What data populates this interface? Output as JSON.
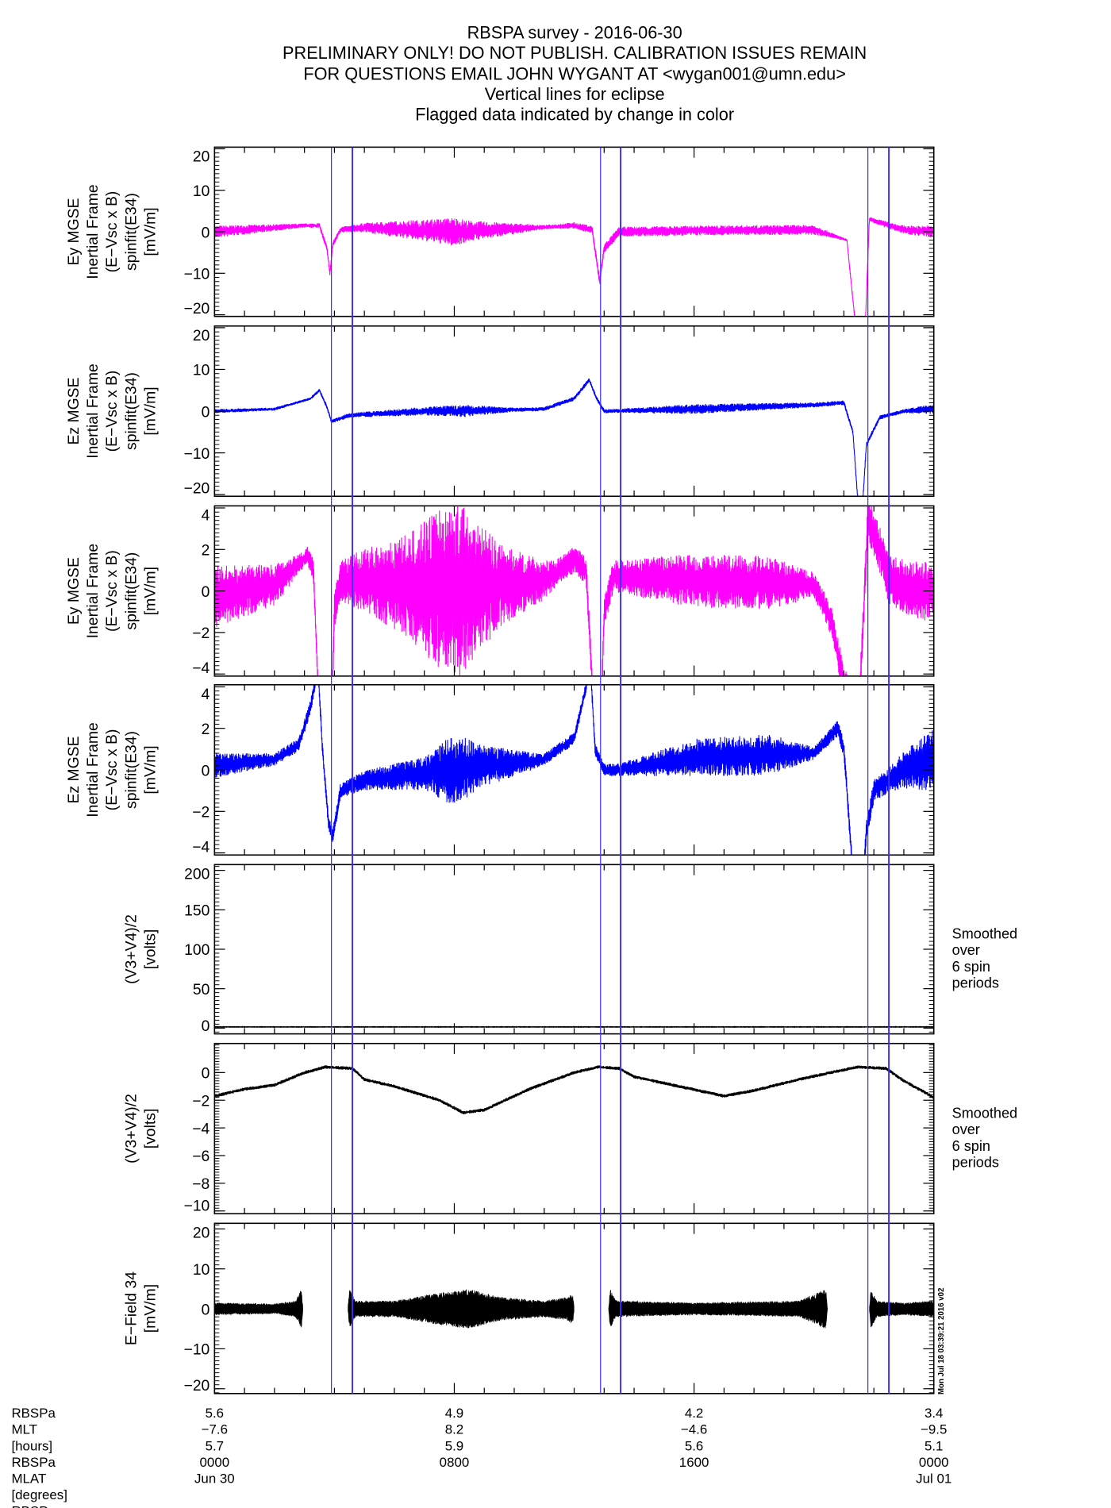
{
  "title_lines": [
    "RBSPA survey - 2016-06-30",
    "PRELIMINARY ONLY! DO NOT PUBLISH. CALIBRATION ISSUES REMAIN",
    "FOR QUESTIONS EMAIL JOHN WYGANT AT <wygan001@umn.edu>",
    "Vertical lines for eclipse",
    "Flagged data indicated by change in color"
  ],
  "timestamp_stamp": "Mon Jul 18 03:39:21 2016 v02",
  "colors": {
    "magenta": "#ff00ff",
    "blue": "#0000ff",
    "black": "#000000",
    "eclipse": "#3a2cff"
  },
  "chart_data": {
    "type": "line",
    "x_unit": "hours since 2016-06-30 0000 UT",
    "xlim": [
      0,
      24
    ],
    "eclipse_lines_hours": [
      3.9,
      4.6,
      12.88,
      13.55,
      21.8,
      22.5
    ],
    "bottom_axis": {
      "row_labels": [
        "RBSPa",
        "MLT",
        "[hours]",
        "RBSPa",
        "MLAT",
        "[degrees]",
        "RBSP"
      ],
      "ticks": [
        {
          "x": 0,
          "rows": [
            "5.6",
            "-7.6",
            "5.7",
            "0000",
            "Jun 30"
          ]
        },
        {
          "x": 8,
          "rows": [
            "4.9",
            "8.2",
            "5.9",
            "0800",
            ""
          ]
        },
        {
          "x": 16,
          "rows": [
            "4.2",
            "-4.6",
            "5.6",
            "1600",
            ""
          ]
        },
        {
          "x": 24,
          "rows": [
            "3.4",
            "-9.5",
            "5.1",
            "0000",
            "Jul 01"
          ]
        }
      ]
    },
    "panels": [
      {
        "id": "ey-20",
        "ylabel": [
          "Ey MGSE",
          "Inertial Frame",
          "(E-Vsc x B)",
          "spinfit(E34)",
          "[mV/m]"
        ],
        "ylim": [
          -20.4,
          20.4
        ],
        "yticks": [
          -20,
          -10,
          0,
          10,
          20
        ],
        "ytick_labels": [
          "-20",
          "-10",
          "0",
          "10",
          "20"
        ],
        "color": "magenta",
        "baseline": [
          [
            0,
            0
          ],
          [
            3.0,
            1.5
          ],
          [
            3.5,
            1.5
          ],
          [
            3.75,
            -4
          ],
          [
            3.85,
            -10
          ],
          [
            3.95,
            -3
          ],
          [
            4.2,
            0.5
          ],
          [
            5,
            1
          ],
          [
            8,
            0
          ],
          [
            12,
            1.5
          ],
          [
            12.6,
            0.5
          ],
          [
            12.85,
            -12
          ],
          [
            13.0,
            -4
          ],
          [
            13.5,
            0
          ],
          [
            16,
            0.3
          ],
          [
            20,
            0.5
          ],
          [
            21.1,
            -2
          ],
          [
            21.35,
            -20
          ],
          [
            21.5,
            -25
          ],
          [
            21.7,
            -25
          ],
          [
            21.85,
            3
          ],
          [
            22.3,
            2
          ],
          [
            23,
            0.5
          ],
          [
            24,
            0
          ]
        ],
        "amplitude": [
          [
            0,
            1.5
          ],
          [
            3,
            0.5
          ],
          [
            4.5,
            0.8
          ],
          [
            7.5,
            3
          ],
          [
            8,
            3.5
          ],
          [
            8.5,
            2.5
          ],
          [
            11,
            0.5
          ],
          [
            13.5,
            1.2
          ],
          [
            20,
            1.2
          ],
          [
            21,
            0.3
          ],
          [
            23,
            1
          ],
          [
            24,
            1.5
          ]
        ]
      },
      {
        "id": "ez-20",
        "ylabel": [
          "Ez MGSE",
          "Inertial Frame",
          "(E-Vsc x B)",
          "spinfit(E34)",
          "[mV/m]"
        ],
        "ylim": [
          -20.4,
          20.4
        ],
        "yticks": [
          -20,
          -10,
          0,
          10,
          20
        ],
        "ytick_labels": [
          "-20",
          "-10",
          "0",
          "10",
          "20"
        ],
        "color": "blue",
        "baseline": [
          [
            0,
            0
          ],
          [
            2,
            0.5
          ],
          [
            3.2,
            3
          ],
          [
            3.5,
            5
          ],
          [
            3.75,
            1
          ],
          [
            3.9,
            -2.5
          ],
          [
            4.5,
            -1
          ],
          [
            7,
            0
          ],
          [
            8,
            0
          ],
          [
            11,
            0.5
          ],
          [
            12,
            3
          ],
          [
            12.5,
            7.5
          ],
          [
            12.75,
            3
          ],
          [
            13,
            0
          ],
          [
            16,
            0.5
          ],
          [
            20,
            1.5
          ],
          [
            21.0,
            2
          ],
          [
            21.3,
            -5
          ],
          [
            21.45,
            -20
          ],
          [
            21.6,
            -25
          ],
          [
            21.75,
            -8
          ],
          [
            22.2,
            -1.5
          ],
          [
            23,
            0
          ],
          [
            24,
            0.5
          ]
        ],
        "amplitude": [
          [
            0,
            0.5
          ],
          [
            3,
            0.3
          ],
          [
            7,
            1
          ],
          [
            8.3,
            1.5
          ],
          [
            10,
            0.5
          ],
          [
            13.5,
            0.5
          ],
          [
            16,
            1.2
          ],
          [
            20,
            0.6
          ],
          [
            23,
            0.5
          ],
          [
            24,
            1.2
          ]
        ]
      },
      {
        "id": "ey-4",
        "ylabel": [
          "Ey MGSE",
          "Inertial Frame",
          "(E-Vsc x B)",
          "spinfit(E34)",
          "[mV/m]"
        ],
        "ylim": [
          -4.1,
          4.1
        ],
        "yticks": [
          -4,
          -2,
          0,
          2,
          4
        ],
        "ytick_labels": [
          "-4",
          "-2",
          "0",
          "2",
          "4"
        ],
        "color": "magenta",
        "baseline": [
          [
            0,
            -0.3
          ],
          [
            2,
            0.3
          ],
          [
            3.1,
            1.7
          ],
          [
            3.3,
            1
          ],
          [
            3.45,
            -4.5
          ],
          [
            3.9,
            -6
          ],
          [
            4.0,
            -1
          ],
          [
            4.2,
            0.5
          ],
          [
            5,
            0.5
          ],
          [
            8,
            0
          ],
          [
            11,
            0.5
          ],
          [
            12,
            1.5
          ],
          [
            12.4,
            1
          ],
          [
            12.6,
            -4.5
          ],
          [
            12.9,
            -6
          ],
          [
            13.0,
            -1
          ],
          [
            13.3,
            0.7
          ],
          [
            16,
            0.5
          ],
          [
            20,
            0.3
          ],
          [
            20.6,
            -1.5
          ],
          [
            21.0,
            -4.5
          ],
          [
            21.5,
            -6
          ],
          [
            21.8,
            3.5
          ],
          [
            22.2,
            2
          ],
          [
            22.5,
            0.5
          ],
          [
            23.5,
            0
          ],
          [
            24,
            0
          ]
        ],
        "amplitude": [
          [
            0,
            1.5
          ],
          [
            2,
            1
          ],
          [
            3,
            0.4
          ],
          [
            4.5,
            1.2
          ],
          [
            6.5,
            2.5
          ],
          [
            7.5,
            4
          ],
          [
            8.3,
            4.2
          ],
          [
            9.5,
            2
          ],
          [
            11.5,
            0.6
          ],
          [
            13.5,
            0.8
          ],
          [
            16,
            1.3
          ],
          [
            18.5,
            1.3
          ],
          [
            20,
            0.6
          ],
          [
            23,
            1.3
          ],
          [
            24,
            1.5
          ]
        ]
      },
      {
        "id": "ez-4",
        "ylabel": [
          "Ez MGSE",
          "Inertial Frame",
          "(E-Vsc x B)",
          "spinfit(E34)",
          "[mV/m]"
        ],
        "ylim": [
          -4.1,
          4.1
        ],
        "yticks": [
          -4,
          -2,
          0,
          2,
          4
        ],
        "ytick_labels": [
          "-4",
          "-2",
          "0",
          "2",
          "4"
        ],
        "color": "blue",
        "baseline": [
          [
            0,
            0.2
          ],
          [
            2,
            0.5
          ],
          [
            2.8,
            1.2
          ],
          [
            3.2,
            3
          ],
          [
            3.45,
            5
          ],
          [
            3.6,
            1
          ],
          [
            3.8,
            -2.5
          ],
          [
            3.95,
            -3.2
          ],
          [
            4.2,
            -1
          ],
          [
            5,
            -0.5
          ],
          [
            8,
            0
          ],
          [
            11,
            0.5
          ],
          [
            12,
            1.5
          ],
          [
            12.4,
            4
          ],
          [
            12.5,
            6
          ],
          [
            12.7,
            1
          ],
          [
            13.0,
            0
          ],
          [
            13.5,
            0
          ],
          [
            16,
            0.6
          ],
          [
            20,
            0.8
          ],
          [
            20.8,
            2
          ],
          [
            21.0,
            1
          ],
          [
            21.3,
            -5
          ],
          [
            21.6,
            -6
          ],
          [
            21.75,
            -3
          ],
          [
            22,
            -1
          ],
          [
            23,
            0
          ],
          [
            24,
            0.5
          ]
        ],
        "amplitude": [
          [
            0,
            0.6
          ],
          [
            2,
            0.3
          ],
          [
            4.5,
            0.4
          ],
          [
            7,
            0.8
          ],
          [
            8,
            1.8
          ],
          [
            9,
            1
          ],
          [
            11,
            0.3
          ],
          [
            13.5,
            0.3
          ],
          [
            16,
            0.9
          ],
          [
            18.5,
            1
          ],
          [
            20,
            0.3
          ],
          [
            22.5,
            0.6
          ],
          [
            24,
            1.5
          ]
        ]
      },
      {
        "id": "vsc-200",
        "ylabel": [
          "(V3+V4)/2",
          "[volts]"
        ],
        "note": [
          "Smoothed",
          "over",
          "6 spin",
          "periods"
        ],
        "ylim": [
          -7.3,
          207.3
        ],
        "yticks": [
          0,
          50,
          100,
          150,
          200
        ],
        "ytick_labels": [
          "0",
          "50",
          "100",
          "150",
          "200"
        ],
        "color": "black",
        "baseline": [
          [
            0,
            1.5
          ],
          [
            24,
            1.5
          ]
        ],
        "amplitude": [
          [
            0,
            0.3
          ],
          [
            24,
            0.3
          ]
        ]
      },
      {
        "id": "vsc-10",
        "ylabel": [
          "(V3+V4)/2",
          "[volts]"
        ],
        "note": [
          "Smoothed",
          "over",
          "6 spin",
          "periods"
        ],
        "ylim": [
          -10.2,
          2.1
        ],
        "yticks": [
          -10,
          -8,
          -6,
          -4,
          -2,
          0
        ],
        "ytick_labels": [
          "-10",
          "-8",
          "-6",
          "-4",
          "-2",
          "0"
        ],
        "color": "black",
        "baseline": [
          [
            0,
            -1.7
          ],
          [
            1,
            -1.2
          ],
          [
            2,
            -0.9
          ],
          [
            3,
            0
          ],
          [
            3.7,
            0.4
          ],
          [
            4.6,
            0.3
          ],
          [
            5,
            -0.5
          ],
          [
            6,
            -1
          ],
          [
            7.5,
            -2
          ],
          [
            8.3,
            -2.9
          ],
          [
            9,
            -2.7
          ],
          [
            10.5,
            -1.2
          ],
          [
            12,
            0
          ],
          [
            12.8,
            0.4
          ],
          [
            13.5,
            0.3
          ],
          [
            14,
            -0.3
          ],
          [
            15.5,
            -1
          ],
          [
            17,
            -1.7
          ],
          [
            18,
            -1.3
          ],
          [
            19.5,
            -0.5
          ],
          [
            21,
            0.2
          ],
          [
            21.5,
            0.4
          ],
          [
            22.4,
            0.3
          ],
          [
            23,
            -0.6
          ],
          [
            24,
            -1.8
          ]
        ],
        "amplitude": [
          [
            0,
            0.12
          ],
          [
            24,
            0.12
          ]
        ],
        "thin": true
      },
      {
        "id": "e34",
        "ylabel": [
          "E-Field 34",
          "[mV/m]"
        ],
        "ylim": [
          -21.2,
          21.4
        ],
        "yticks": [
          -20,
          -10,
          0,
          10,
          20
        ],
        "ytick_labels": [
          "-20",
          "-10",
          "0",
          "10",
          "20"
        ],
        "color": "black",
        "baseline": [
          [
            0,
            0
          ],
          [
            24,
            0
          ]
        ],
        "amplitude": [
          [
            0,
            1.5
          ],
          [
            2,
            1.2
          ],
          [
            2.7,
            2
          ],
          [
            2.9,
            5
          ],
          [
            2.95,
            0
          ],
          [
            4.45,
            0
          ],
          [
            4.5,
            5
          ],
          [
            4.7,
            2
          ],
          [
            6,
            2
          ],
          [
            7.5,
            4
          ],
          [
            8.5,
            5
          ],
          [
            9.5,
            3
          ],
          [
            11,
            2
          ],
          [
            11.8,
            3
          ],
          [
            11.95,
            4
          ],
          [
            12.0,
            0
          ],
          [
            13.15,
            0
          ],
          [
            13.2,
            5
          ],
          [
            13.4,
            2
          ],
          [
            16,
            1.5
          ],
          [
            19.5,
            2
          ],
          [
            20.4,
            5
          ],
          [
            20.45,
            0
          ],
          [
            21.85,
            0
          ],
          [
            21.9,
            5
          ],
          [
            22.1,
            2
          ],
          [
            23,
            1.5
          ],
          [
            24,
            2
          ]
        ],
        "filled": true
      }
    ]
  }
}
